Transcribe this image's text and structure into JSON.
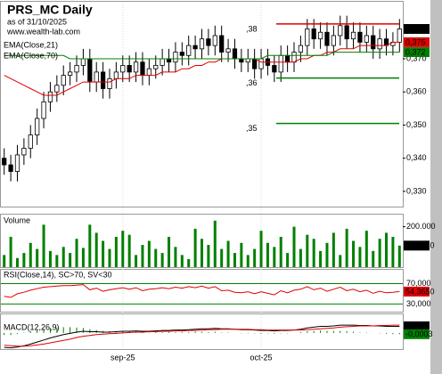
{
  "chart_data": [
    {
      "type": "candlestick",
      "title": "PRS_MC Daily",
      "subtitle": "as of 31/10/2025",
      "source": "www.wealth-lab.com",
      "categories": [
        null,
        null,
        null,
        null,
        null,
        null,
        null,
        null,
        null,
        null,
        null,
        null,
        null,
        null,
        null,
        null,
        null,
        null,
        "sep-25",
        null,
        null,
        null,
        null,
        null,
        null,
        null,
        null,
        null,
        null,
        null,
        null,
        null,
        null,
        null,
        null,
        null,
        null,
        null,
        null,
        "oct-25",
        null,
        null,
        null,
        null,
        null,
        null,
        null,
        null,
        null,
        null,
        null,
        null,
        null,
        null,
        null,
        null,
        null,
        null,
        null,
        null,
        null
      ],
      "open": [
        0.34,
        0.338,
        0.336,
        0.341,
        0.343,
        0.347,
        0.352,
        0.357,
        0.36,
        0.362,
        0.365,
        0.366,
        0.368,
        0.37,
        0.363,
        0.366,
        0.361,
        0.364,
        0.366,
        0.368,
        0.366,
        0.369,
        0.365,
        0.367,
        0.368,
        0.37,
        0.369,
        0.372,
        0.371,
        0.374,
        0.373,
        0.376,
        0.374,
        0.377,
        0.372,
        0.373,
        0.37,
        0.369,
        0.37,
        0.367,
        0.37,
        0.368,
        0.366,
        0.371,
        0.369,
        0.372,
        0.374,
        0.379,
        0.376,
        0.378,
        0.374,
        0.377,
        0.38,
        0.376,
        0.378,
        0.375,
        0.377,
        0.373,
        0.376,
        0.374,
        0.375
      ],
      "high": [
        0.343,
        0.341,
        0.344,
        0.346,
        0.35,
        0.355,
        0.36,
        0.363,
        0.365,
        0.368,
        0.369,
        0.371,
        0.373,
        0.373,
        0.369,
        0.369,
        0.367,
        0.369,
        0.371,
        0.371,
        0.372,
        0.372,
        0.37,
        0.371,
        0.373,
        0.373,
        0.375,
        0.375,
        0.377,
        0.377,
        0.379,
        0.379,
        0.38,
        0.38,
        0.376,
        0.376,
        0.373,
        0.373,
        0.373,
        0.373,
        0.373,
        0.371,
        0.374,
        0.374,
        0.375,
        0.377,
        0.382,
        0.382,
        0.381,
        0.381,
        0.38,
        0.383,
        0.383,
        0.381,
        0.381,
        0.38,
        0.38,
        0.379,
        0.379,
        0.378,
        0.382
      ],
      "low": [
        0.335,
        0.333,
        0.333,
        0.338,
        0.34,
        0.344,
        0.349,
        0.354,
        0.357,
        0.359,
        0.362,
        0.363,
        0.365,
        0.36,
        0.36,
        0.358,
        0.358,
        0.361,
        0.363,
        0.363,
        0.363,
        0.362,
        0.362,
        0.364,
        0.365,
        0.366,
        0.366,
        0.368,
        0.368,
        0.37,
        0.37,
        0.371,
        0.371,
        0.369,
        0.369,
        0.367,
        0.366,
        0.366,
        0.364,
        0.364,
        0.365,
        0.363,
        0.363,
        0.366,
        0.366,
        0.369,
        0.371,
        0.373,
        0.373,
        0.371,
        0.371,
        0.374,
        0.373,
        0.373,
        0.372,
        0.372,
        0.37,
        0.37,
        0.371,
        0.371,
        0.372
      ],
      "close": [
        0.338,
        0.336,
        0.341,
        0.343,
        0.347,
        0.352,
        0.357,
        0.36,
        0.362,
        0.365,
        0.366,
        0.368,
        0.37,
        0.363,
        0.366,
        0.361,
        0.364,
        0.366,
        0.368,
        0.366,
        0.369,
        0.365,
        0.367,
        0.368,
        0.37,
        0.369,
        0.372,
        0.371,
        0.374,
        0.373,
        0.376,
        0.374,
        0.377,
        0.372,
        0.373,
        0.37,
        0.369,
        0.37,
        0.367,
        0.37,
        0.368,
        0.366,
        0.371,
        0.369,
        0.372,
        0.374,
        0.379,
        0.376,
        0.378,
        0.374,
        0.377,
        0.38,
        0.376,
        0.378,
        0.375,
        0.377,
        0.373,
        0.376,
        0.374,
        0.375,
        0.379
      ],
      "series": [
        {
          "name": "EMA(Close,21)",
          "color": "#e00000",
          "values": [
            0.365,
            0.364,
            0.363,
            0.362,
            0.361,
            0.36,
            0.359,
            0.359,
            0.359,
            0.36,
            0.361,
            0.362,
            0.363,
            0.363,
            0.363,
            0.363,
            0.363,
            0.364,
            0.364,
            0.364,
            0.365,
            0.365,
            0.365,
            0.365,
            0.366,
            0.366,
            0.366,
            0.367,
            0.367,
            0.368,
            0.368,
            0.369,
            0.369,
            0.37,
            0.37,
            0.37,
            0.37,
            0.37,
            0.37,
            0.369,
            0.369,
            0.369,
            0.369,
            0.369,
            0.369,
            0.37,
            0.37,
            0.371,
            0.371,
            0.372,
            0.372,
            0.373,
            0.373,
            0.373,
            0.374,
            0.374,
            0.374,
            0.374,
            0.374,
            0.375,
            0.375
          ]
        },
        {
          "name": "EMA(Close,70)",
          "color": "#008000",
          "values": [
            0.371,
            0.371,
            0.371,
            0.371,
            0.371,
            0.371,
            0.371,
            0.371,
            0.371,
            0.371,
            0.37,
            0.37,
            0.37,
            0.37,
            0.37,
            0.37,
            0.37,
            0.37,
            0.37,
            0.37,
            0.37,
            0.37,
            0.37,
            0.37,
            0.37,
            0.37,
            0.37,
            0.37,
            0.37,
            0.37,
            0.37,
            0.37,
            0.37,
            0.37,
            0.37,
            0.37,
            0.37,
            0.37,
            0.37,
            0.37,
            0.371,
            0.371,
            0.371,
            0.371,
            0.371,
            0.371,
            0.371,
            0.371,
            0.371,
            0.371,
            0.372,
            0.372,
            0.372,
            0.372,
            0.372,
            0.372,
            0.372,
            0.372,
            0.372,
            0.372,
            0.372
          ]
        }
      ],
      "ylim": [
        0.3254,
        0.3872
      ],
      "yticks": [
        {
          "value": 0.37,
          "label": "0,370"
        },
        {
          "value": 0.36,
          "label": "0,360"
        },
        {
          "value": 0.35,
          "label": "0,350"
        },
        {
          "value": 0.34,
          "label": "0,340"
        },
        {
          "value": 0.33,
          "label": "0,330"
        }
      ],
      "hlines": [
        {
          "value": 0.3805,
          "label": ",38",
          "color": "#e00000"
        },
        {
          "value": 0.3642,
          "label": ",36",
          "color": "#008000"
        },
        {
          "value": 0.3505,
          "label": ",35",
          "color": "#008000"
        }
      ],
      "markers": [
        {
          "value": 0.379,
          "label": "0,379",
          "color": "#000000"
        },
        {
          "value": 0.375,
          "label": "0,375",
          "color": "#e00000"
        },
        {
          "value": 0.372,
          "label": "0,372",
          "color": "#008000"
        }
      ]
    },
    {
      "type": "bar",
      "title": "Volume",
      "color": "#008000",
      "values": [
        60000,
        150000,
        45000,
        70000,
        120000,
        90000,
        210000,
        80000,
        60000,
        100000,
        70000,
        140000,
        95000,
        210000,
        170000,
        130000,
        90000,
        150000,
        180000,
        160000,
        60000,
        110000,
        130000,
        90000,
        70000,
        150000,
        100000,
        60000,
        40000,
        190000,
        140000,
        110000,
        230000,
        90000,
        130000,
        70000,
        120000,
        60000,
        90000,
        180000,
        120000,
        100000,
        150000,
        70000,
        200000,
        90000,
        160000,
        140000,
        80000,
        120000,
        170000,
        60000,
        190000,
        130000,
        100000,
        180000,
        80000,
        140000,
        170000,
        150000,
        106550
      ],
      "ylim": [
        0,
        260000
      ],
      "yticks": [
        {
          "value": 200000,
          "label": "200.000"
        }
      ],
      "markers": [
        {
          "value": 106550,
          "label": "106.550",
          "color": "#000000"
        }
      ]
    },
    {
      "type": "line",
      "title": "RSI(Close,14), SC>70, SV<30",
      "color": "#e00000",
      "values": [
        45,
        43,
        50,
        53,
        57,
        60,
        63,
        64,
        65,
        66,
        66,
        67,
        68,
        58,
        61,
        55,
        58,
        60,
        62,
        59,
        62,
        56,
        59,
        60,
        62,
        60,
        63,
        61,
        64,
        62,
        65,
        61,
        64,
        56,
        57,
        53,
        52,
        54,
        50,
        54,
        51,
        48,
        56,
        52,
        57,
        59,
        64,
        58,
        61,
        55,
        59,
        63,
        56,
        59,
        54,
        57,
        51,
        55,
        52,
        53,
        54.365
      ],
      "ylim": [
        15,
        97
      ],
      "yticks": [
        {
          "value": 70,
          "label": "70,000"
        },
        {
          "value": 30,
          "label": "30,000"
        }
      ],
      "markers": [
        {
          "value": 54.365,
          "label": "54,3650",
          "color": "#e00000"
        }
      ]
    },
    {
      "type": "line",
      "title": "MACD(12,26,9)",
      "series": [
        {
          "color": "#000000",
          "values": [
            -0.0035,
            -0.0036,
            -0.0034,
            -0.0031,
            -0.0027,
            -0.0022,
            -0.0017,
            -0.0012,
            -0.0008,
            -0.0004,
            -0.0001,
            0.0002,
            0.0004,
            0.0003,
            0.0003,
            0.0002,
            0.0002,
            0.0003,
            0.0004,
            0.0004,
            0.0005,
            0.0004,
            0.0004,
            0.0005,
            0.0006,
            0.0006,
            0.0007,
            0.0007,
            0.0008,
            0.0009,
            0.001,
            0.001,
            0.0011,
            0.001,
            0.001,
            0.0009,
            0.0008,
            0.0008,
            0.0007,
            0.0006,
            0.0006,
            0.0005,
            0.0006,
            0.0006,
            0.0007,
            0.0009,
            0.0012,
            0.0014,
            0.0016,
            0.0016,
            0.0017,
            0.0019,
            0.0019,
            0.0019,
            0.0018,
            0.0018,
            0.0017,
            0.0017,
            0.0016,
            0.0016,
            0.0016
          ]
        },
        {
          "color": "#e00000",
          "values": [
            -0.003,
            -0.0031,
            -0.0032,
            -0.0032,
            -0.0031,
            -0.0029,
            -0.0027,
            -0.0024,
            -0.0021,
            -0.0018,
            -0.0015,
            -0.0011,
            -0.0008,
            -0.0006,
            -0.0004,
            -0.0003,
            -0.0002,
            -0.0001,
            0.0,
            0.0001,
            0.0002,
            0.0002,
            0.0003,
            0.0003,
            0.0004,
            0.0004,
            0.0005,
            0.0005,
            0.0006,
            0.0006,
            0.0007,
            0.0008,
            0.0008,
            0.0009,
            0.0009,
            0.0009,
            0.0009,
            0.0009,
            0.0008,
            0.0008,
            0.0007,
            0.0007,
            0.0007,
            0.0007,
            0.0007,
            0.0007,
            0.0008,
            0.0009,
            0.001,
            0.0011,
            0.0012,
            0.0014,
            0.0015,
            0.0016,
            0.0017,
            0.0017,
            0.0017,
            0.0018,
            0.0018,
            0.0019,
            0.0019
          ]
        }
      ],
      "bars": {
        "color": "#008000",
        "values": [
          -0.0005,
          -0.0005,
          -0.0002,
          0.0001,
          0.0004,
          0.0007,
          0.001,
          0.0012,
          0.0013,
          0.0014,
          0.0014,
          0.0013,
          0.0012,
          0.0009,
          0.0007,
          0.0005,
          0.0004,
          0.0004,
          0.0004,
          0.0003,
          0.0003,
          0.0002,
          0.0001,
          0.0002,
          0.0002,
          0.0002,
          0.0002,
          0.0002,
          0.0002,
          0.0003,
          0.0003,
          0.0002,
          0.0003,
          0.0001,
          0.0001,
          0,
          -0.0001,
          -0.0001,
          -0.0001,
          -0.0002,
          -0.0001,
          -0.0002,
          -0.0001,
          -0.0001,
          0,
          0.0002,
          0.0004,
          0.0005,
          0.0006,
          0.0005,
          0.0005,
          0.0005,
          0.0004,
          0.0003,
          0.0001,
          0.0001,
          0,
          -0.0001,
          -0.0002,
          -0.0003,
          -0.0003
        ]
      },
      "ylim": [
        -0.0039,
        0.0045
      ],
      "markers": [
        {
          "value": 0.0016,
          "label": "0,0016",
          "color": "#000000"
        },
        {
          "value": -0.0003,
          "label": "-0,0003",
          "color": "#008000"
        }
      ]
    }
  ]
}
